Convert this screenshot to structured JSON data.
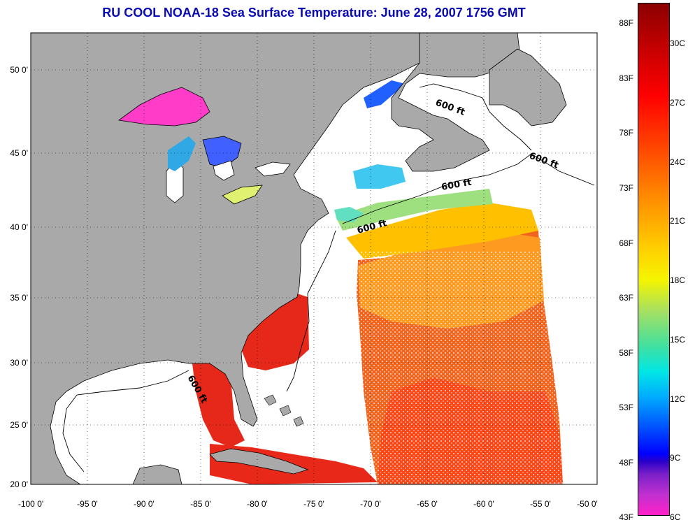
{
  "title": "RU COOL  NOAA-18  Sea Surface Temperature:  June 28, 2007 1756 GMT",
  "map": {
    "lon_labels": [
      "-100 0'",
      "-95 0'",
      "-90 0'",
      "-85 0'",
      "-80 0'",
      "-75 0'",
      "-70 0'",
      "-65 0'",
      "-60 0'",
      "-55 0'",
      "-50 0'"
    ],
    "lat_labels": [
      "50 0'",
      "45 0'",
      "40 0'",
      "35 0'",
      "30 0'",
      "25 0'",
      "20 0'"
    ],
    "contour_labels": [
      "600 ft",
      "600 ft",
      "600 ft",
      "600 ft",
      "600 ft"
    ],
    "land_color": "#a9a9a9",
    "grid": "dotted"
  },
  "colorbar": {
    "f_labels": [
      "88F",
      "83F",
      "78F",
      "73F",
      "68F",
      "63F",
      "58F",
      "53F",
      "48F",
      "43F"
    ],
    "c_labels": [
      "30C",
      "27C",
      "24C",
      "21C",
      "18C",
      "15C",
      "12C",
      "9C",
      "6C"
    ]
  }
}
